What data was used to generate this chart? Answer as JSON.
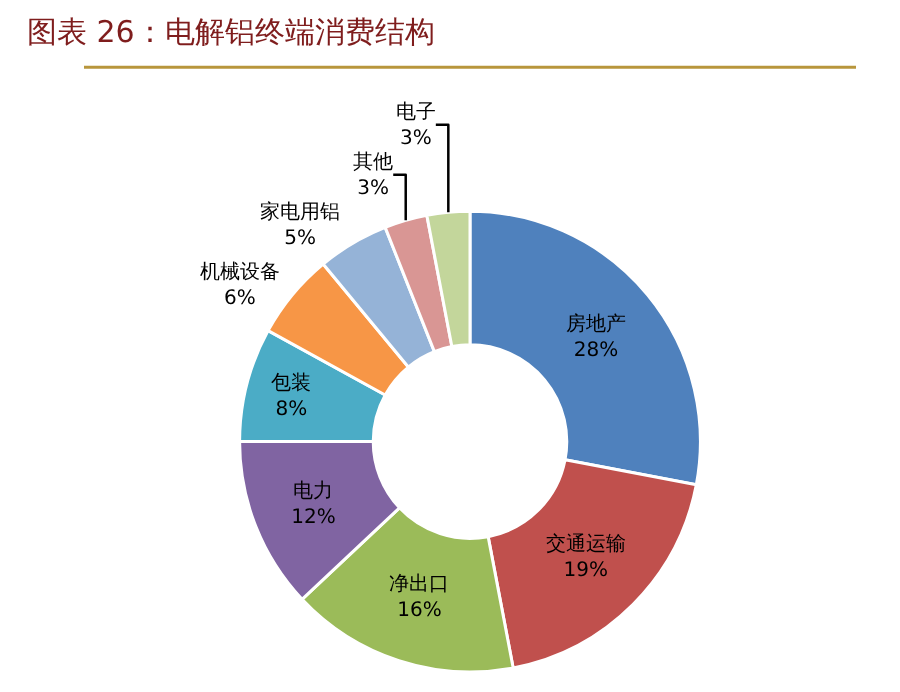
{
  "chart_data": {
    "type": "donut",
    "title": "图表 26：电解铝终端消费结构",
    "categories": [
      "房地产",
      "交通运输",
      "净出口",
      "电力",
      "包装",
      "机械设备",
      "家电用铝",
      "其他",
      "电子"
    ],
    "values": [
      28,
      19,
      16,
      12,
      8,
      6,
      5,
      3,
      3
    ],
    "value_labels": [
      "28%",
      "19%",
      "16%",
      "12%",
      "8%",
      "6%",
      "5%",
      "3%",
      "3%"
    ],
    "colors": [
      "#4f81bd",
      "#c0504d",
      "#9bbb59",
      "#8064a2",
      "#4bacc6",
      "#f79646",
      "#95b3d7",
      "#d99694",
      "#c3d69b"
    ],
    "legend": false
  }
}
